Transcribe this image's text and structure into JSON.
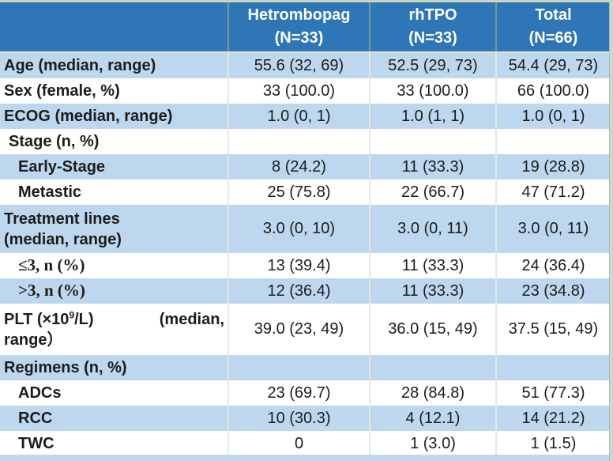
{
  "colors": {
    "header_bg": "#2f76b6",
    "band": "#bdd7ee",
    "header_text": "#ffffff",
    "body_text": "#1c1c1c"
  },
  "table": {
    "header": {
      "col0": "",
      "columns": [
        {
          "line1": "Hetrombopag",
          "line2": "(N=33)"
        },
        {
          "line1": "rhTPO",
          "line2": "(N=33)"
        },
        {
          "line1": "Total",
          "line2": "(N=66)"
        }
      ]
    },
    "rows": [
      {
        "label": "Age (median, range)",
        "indent": 0,
        "shade": "band",
        "values": [
          "55.6 (32, 69)",
          "52.5 (29, 73)",
          "54.4 (29, 73)"
        ]
      },
      {
        "label": "Sex (female, %)",
        "indent": 0,
        "shade": "white",
        "values": [
          "33 (100.0)",
          "33 (100.0)",
          "66 (100.0)"
        ]
      },
      {
        "label": "ECOG (median, range)",
        "indent": 0,
        "shade": "band",
        "values": [
          "1.0 (0, 1)",
          "1.0 (1, 1)",
          "1.0 (0, 1)"
        ]
      },
      {
        "label": "Stage (n, %)",
        "indent": 1,
        "shade": "white",
        "values": [
          "",
          "",
          ""
        ]
      },
      {
        "label": "Early-Stage",
        "indent": 2,
        "shade": "band",
        "values": [
          "8 (24.2)",
          "11 (33.3)",
          "19 (28.8)"
        ]
      },
      {
        "label": "Metastic",
        "indent": 2,
        "shade": "white",
        "values": [
          "25 (75.8)",
          "22 (66.7)",
          "47 (71.2)"
        ]
      },
      {
        "label_lines": [
          "Treatment lines",
          "(median, range)"
        ],
        "indent": 0,
        "shade": "band",
        "size": "tall",
        "values": [
          "3.0 (0, 10)",
          "3.0 (0, 11)",
          "3.0 (0, 11)"
        ]
      },
      {
        "label": "≤3, n (%)",
        "indent": 2,
        "serif": true,
        "shade": "white",
        "values": [
          "13 (39.4)",
          "11 (33.3)",
          "24 (36.4)"
        ]
      },
      {
        "label": ">3, n (%)",
        "indent": 2,
        "serif": true,
        "shade": "band",
        "values": [
          "12 (36.4)",
          "11 (33.3)",
          "23 (34.8)"
        ]
      },
      {
        "label_parts": {
          "pre": "PLT (×10",
          "sup": "9",
          "post": "/L)",
          "right": "(median,",
          "line2": "range）"
        },
        "indent": 0,
        "shade": "white",
        "size": "xtall",
        "values": [
          "39.0 (23, 49)",
          "36.0 (15, 49)",
          "37.5 (15, 49)"
        ]
      },
      {
        "label": "Regimens (n, %)",
        "indent": 0,
        "shade": "band",
        "values": [
          "",
          "",
          ""
        ]
      },
      {
        "label": "ADCs",
        "indent": 2,
        "shade": "white",
        "values": [
          "23 (69.7)",
          "28 (84.8)",
          "51 (77.3)"
        ]
      },
      {
        "label": "RCC",
        "indent": 2,
        "shade": "band",
        "values": [
          "10 (30.3)",
          "4 (12.1)",
          "14 (21.2)"
        ]
      },
      {
        "label": "TWC",
        "indent": 2,
        "shade": "white",
        "values": [
          "0",
          "1 (3.0)",
          "1 (1.5)"
        ]
      }
    ]
  }
}
